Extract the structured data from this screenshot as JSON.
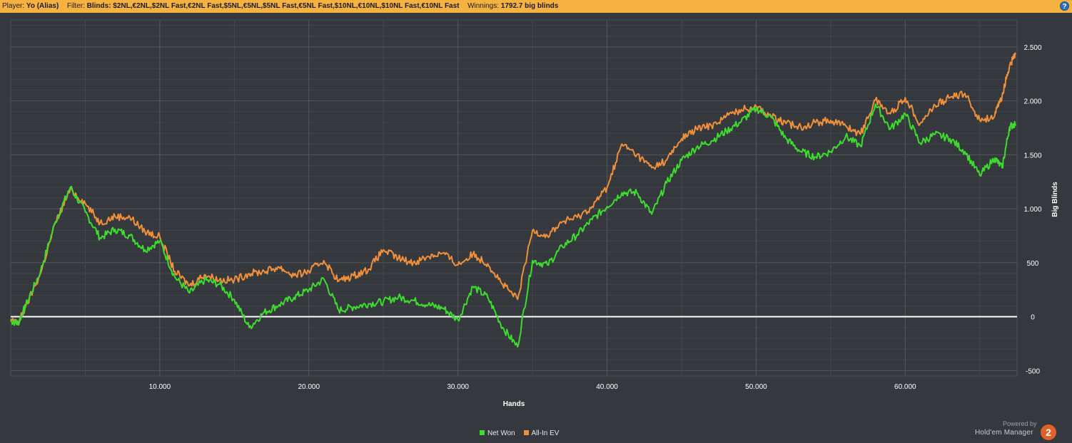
{
  "header": {
    "player_label": "Player:",
    "player_value": "Yo (Alias)",
    "filter_label": "Filter:",
    "filter_value": "Blinds: $2NL,€2NL,$2NL Fast,€2NL Fast,$5NL,€5NL,$5NL Fast,€5NL Fast,$10NL,€10NL,$10NL Fast,€10NL Fast",
    "winnings_label": "Winnings:",
    "winnings_value": "1792.7 big blinds",
    "help_glyph": "?"
  },
  "chart_data": {
    "type": "line",
    "xlabel": "Hands",
    "ylabel": "Big Blinds",
    "xlim": [
      0,
      67500
    ],
    "ylim": [
      -550,
      2750
    ],
    "x_ticks": [
      10000,
      20000,
      30000,
      40000,
      50000,
      60000
    ],
    "x_tick_labels": [
      "10.000",
      "20.000",
      "30.000",
      "40.000",
      "50.000",
      "60.000"
    ],
    "y_ticks": [
      -500,
      0,
      500,
      1000,
      1500,
      2000,
      2500
    ],
    "y_tick_labels": [
      "-500",
      "0",
      "500",
      "1.000",
      "1.500",
      "2.000",
      "2.500"
    ],
    "grid": true,
    "zero_line": true,
    "legend_position": "bottom-center",
    "series": [
      {
        "name": "Net Won",
        "color": "#3ddc2f",
        "x": [
          0,
          500,
          1000,
          2000,
          3000,
          4000,
          5000,
          6000,
          7000,
          8000,
          9000,
          10000,
          11000,
          12000,
          13000,
          14000,
          15000,
          16000,
          17000,
          18000,
          19000,
          20000,
          21000,
          22000,
          23000,
          24000,
          25000,
          26000,
          27000,
          28000,
          29000,
          30000,
          31000,
          32000,
          33000,
          34000,
          35000,
          36000,
          37000,
          38000,
          39000,
          40000,
          41000,
          42000,
          43000,
          44000,
          45000,
          46000,
          47000,
          48000,
          49000,
          50000,
          51000,
          52000,
          53000,
          54000,
          55000,
          56000,
          57000,
          58000,
          59000,
          60000,
          61000,
          62000,
          63000,
          64000,
          65000,
          66000,
          66500,
          67000,
          67400
        ],
        "values": [
          -40,
          -60,
          100,
          420,
          880,
          1200,
          970,
          730,
          810,
          750,
          620,
          700,
          370,
          220,
          340,
          300,
          160,
          -100,
          40,
          110,
          180,
          250,
          350,
          60,
          90,
          120,
          140,
          180,
          150,
          110,
          80,
          -30,
          280,
          180,
          -100,
          -280,
          520,
          480,
          650,
          760,
          900,
          1020,
          1150,
          1150,
          950,
          1240,
          1450,
          1570,
          1630,
          1720,
          1810,
          1930,
          1850,
          1650,
          1530,
          1480,
          1530,
          1670,
          1580,
          1970,
          1740,
          1880,
          1610,
          1690,
          1650,
          1530,
          1310,
          1470,
          1380,
          1760,
          1790
        ]
      },
      {
        "name": "All-In EV",
        "color": "#f0903a",
        "x": [
          0,
          500,
          1000,
          2000,
          3000,
          4000,
          5000,
          6000,
          7000,
          8000,
          9000,
          10000,
          11000,
          12000,
          13000,
          14000,
          15000,
          16000,
          17000,
          18000,
          19000,
          20000,
          21000,
          22000,
          23000,
          24000,
          25000,
          26000,
          27000,
          28000,
          29000,
          30000,
          31000,
          32000,
          33000,
          34000,
          35000,
          36000,
          37000,
          38000,
          39000,
          40000,
          41000,
          42000,
          43000,
          44000,
          45000,
          46000,
          47000,
          48000,
          49000,
          50000,
          51000,
          52000,
          53000,
          54000,
          55000,
          56000,
          57000,
          58000,
          59000,
          60000,
          61000,
          62000,
          63000,
          64000,
          65000,
          66000,
          66500,
          67000,
          67400
        ],
        "values": [
          -40,
          -60,
          90,
          400,
          870,
          1180,
          1050,
          870,
          930,
          920,
          790,
          740,
          420,
          290,
          390,
          340,
          340,
          400,
          420,
          460,
          380,
          420,
          520,
          330,
          380,
          440,
          620,
          540,
          500,
          560,
          590,
          480,
          580,
          490,
          300,
          160,
          800,
          750,
          880,
          920,
          1020,
          1200,
          1600,
          1500,
          1380,
          1450,
          1650,
          1740,
          1770,
          1860,
          1920,
          1950,
          1860,
          1790,
          1760,
          1800,
          1820,
          1770,
          1690,
          2010,
          1880,
          2030,
          1790,
          1960,
          2030,
          2070,
          1820,
          1860,
          2050,
          2330,
          2430
        ]
      }
    ]
  },
  "legend": [
    {
      "label": "Net Won",
      "color": "#3ddc2f"
    },
    {
      "label": "All-In EV",
      "color": "#f0903a"
    }
  ],
  "branding": {
    "powered_by": "Powered by",
    "product": "Hold'em Manager",
    "logo_glyph": "2"
  }
}
